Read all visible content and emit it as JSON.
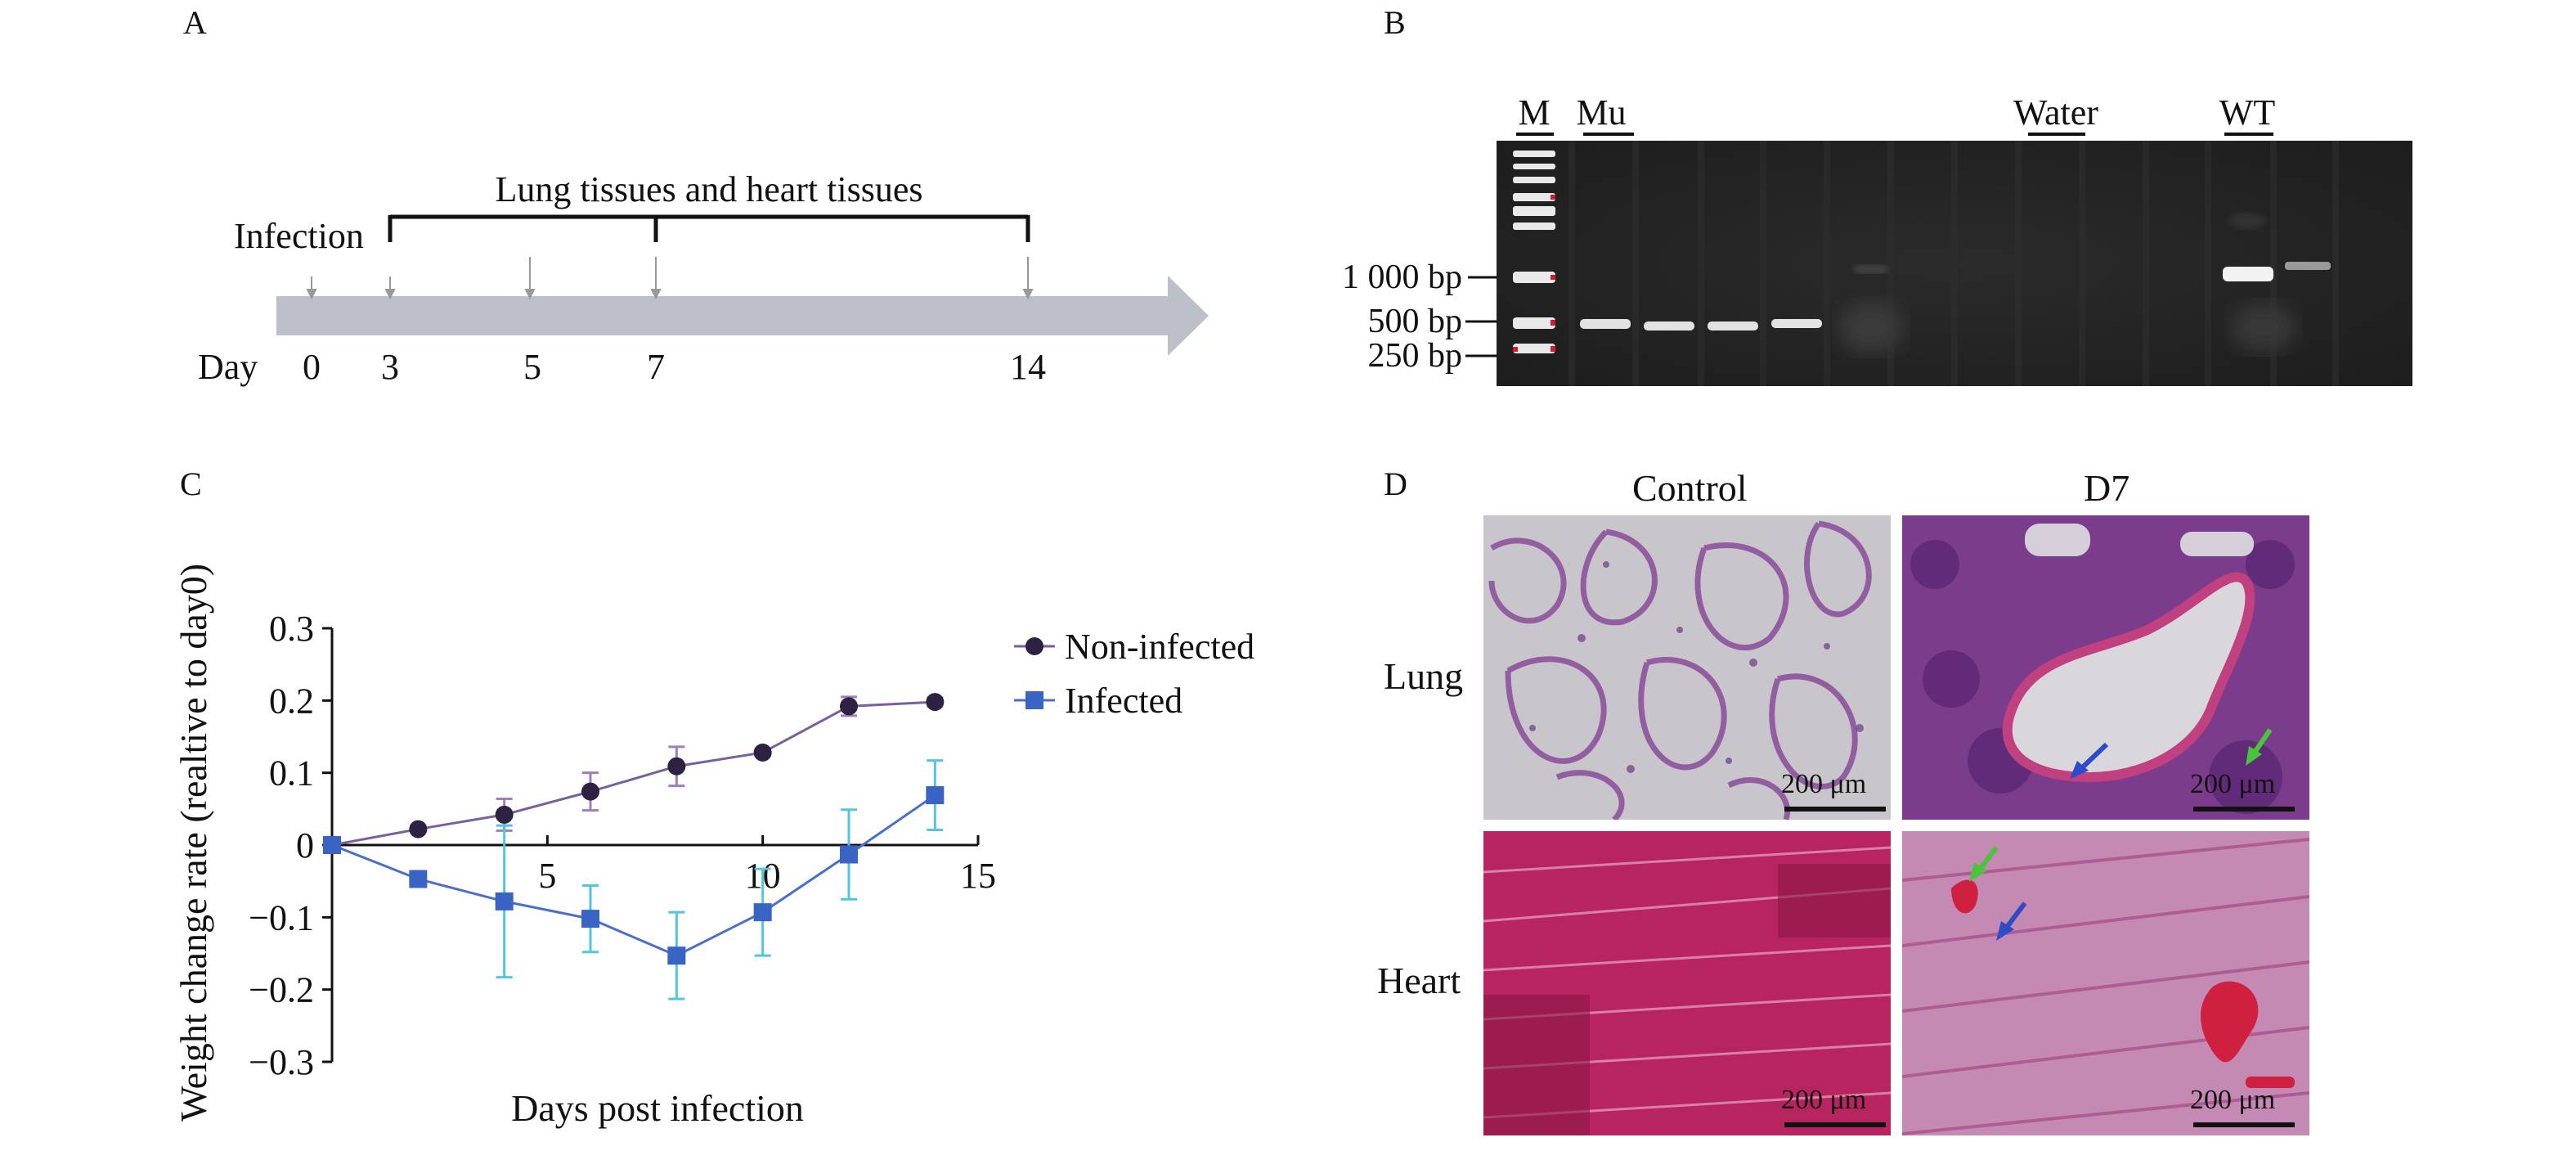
{
  "panels": {
    "a": {
      "letter": "A",
      "infection_label": "Infection",
      "tissues_label": "Lung tissues and heart tissues",
      "day_label": "Day",
      "days": [
        "0",
        "3",
        "5",
        "7",
        "14"
      ]
    },
    "b": {
      "letter": "B",
      "lane_labels": [
        "M",
        "Mu",
        "Water",
        "WT"
      ],
      "size_markers": [
        "1 000 bp",
        "500 bp",
        "250 bp"
      ]
    },
    "c": {
      "letter": "C"
    },
    "d": {
      "letter": "D",
      "column_labels": [
        "Control",
        "D7"
      ],
      "row_labels": [
        "Lung",
        "Heart"
      ],
      "scale_bar_label": "200 μm"
    }
  },
  "chart_data": {
    "type": "line",
    "xlabel": "Days post infection",
    "ylabel": "Weight change rate (realtive to day0)",
    "xlim": [
      0,
      15
    ],
    "ylim": [
      -0.3,
      0.3
    ],
    "x_ticks": [
      "5",
      "10",
      "15"
    ],
    "y_ticks": [
      "0.3",
      "0.2",
      "0.1",
      "0",
      "−0.1",
      "−0.2",
      "−0.3"
    ],
    "legend_position": "top-right",
    "grid": false,
    "series": [
      {
        "name": "Non-infected",
        "marker": "circle",
        "color": "#2e2243",
        "line_color": "#7a5f9e",
        "error_color": "#a07cc0",
        "x": [
          0,
          2,
          4,
          6,
          8,
          10,
          12,
          14
        ],
        "y": [
          0,
          0.022,
          0.042,
          0.074,
          0.109,
          0.128,
          0.192,
          0.198
        ],
        "error": [
          0,
          0.004,
          0.022,
          0.026,
          0.027,
          0.005,
          0.013,
          0.006
        ]
      },
      {
        "name": "Infected",
        "marker": "square",
        "color": "#3a64c4",
        "line_color": "#4a6fcb",
        "error_color": "#52c5e2",
        "x": [
          0,
          2,
          4,
          6,
          8,
          10,
          12,
          14
        ],
        "y": [
          0,
          -0.047,
          -0.078,
          -0.102,
          -0.153,
          -0.093,
          -0.013,
          0.069
        ],
        "error": [
          0,
          0.006,
          0.105,
          0.046,
          0.06,
          0.06,
          0.062,
          0.048
        ]
      }
    ]
  }
}
